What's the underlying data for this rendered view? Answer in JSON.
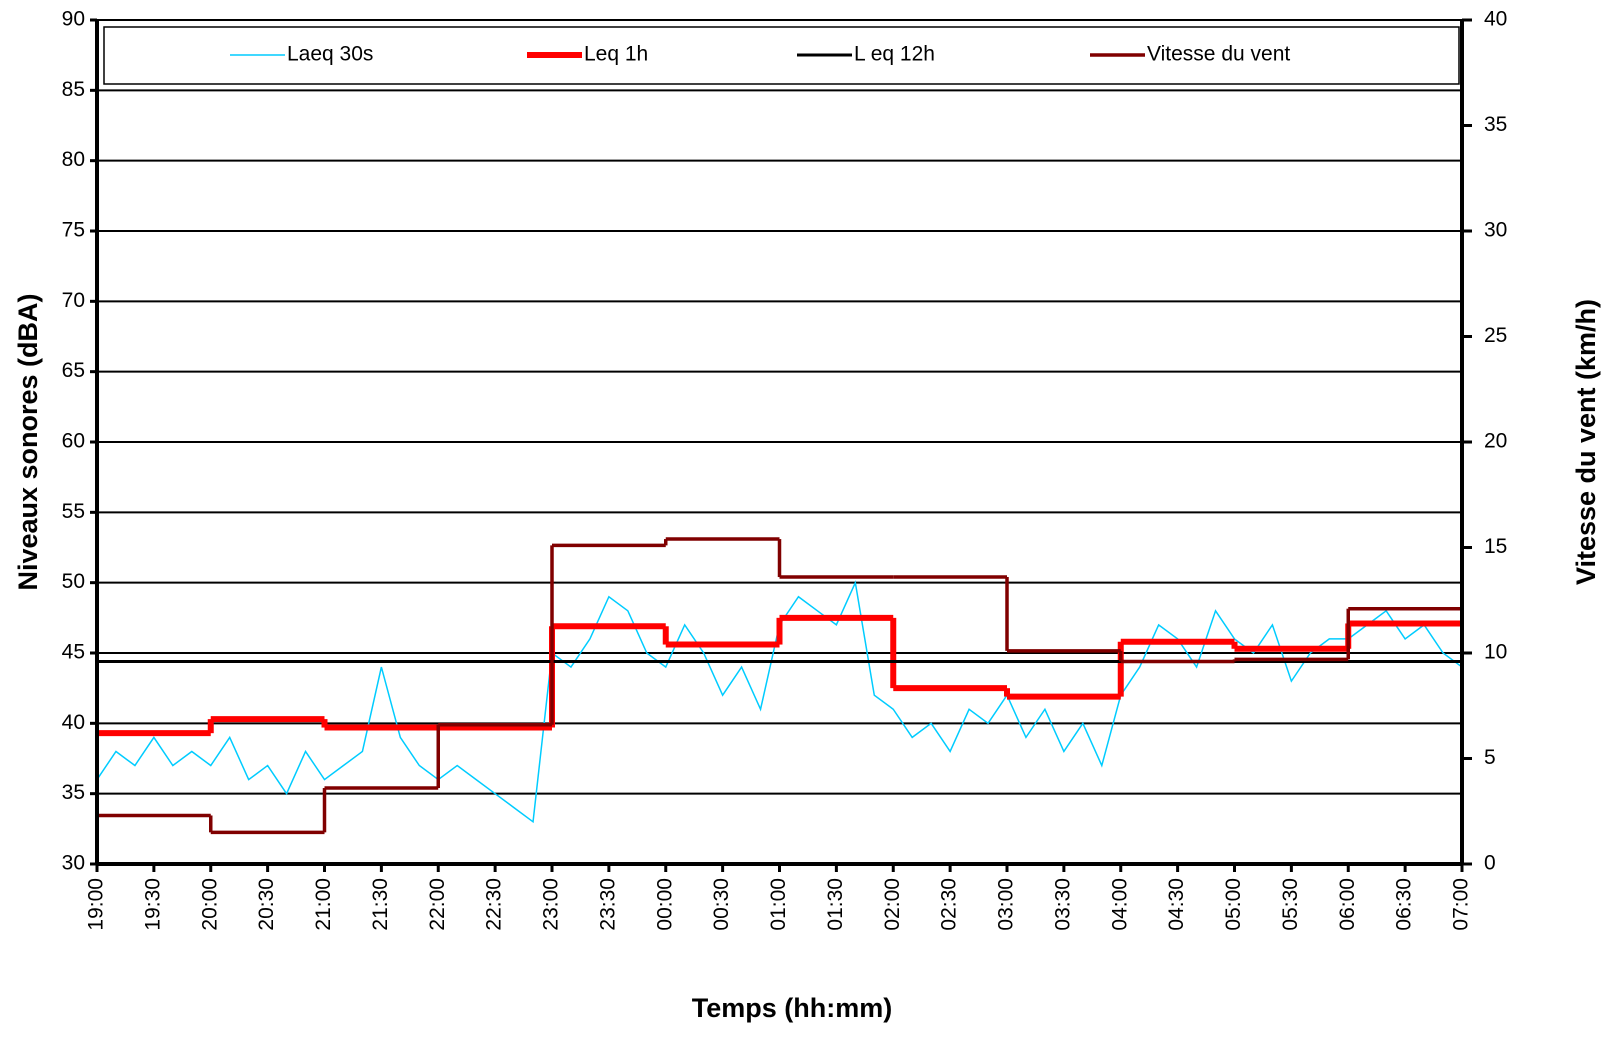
{
  "chart_data": {
    "type": "line",
    "x_label": "Temps (hh:mm)",
    "y_label": "Niveaux sonores (dBA)",
    "y2_label": "Vitesse du vent (km/h)",
    "xlim": [
      "19:00",
      "07:00"
    ],
    "xticks": [
      "19:00",
      "19:30",
      "20:00",
      "20:30",
      "21:00",
      "21:30",
      "22:00",
      "22:30",
      "23:00",
      "23:30",
      "00:00",
      "00:30",
      "01:00",
      "01:30",
      "02:00",
      "02:30",
      "03:00",
      "03:30",
      "04:00",
      "04:30",
      "05:00",
      "05:30",
      "06:00",
      "06:30",
      "07:00"
    ],
    "ylim": [
      30,
      90
    ],
    "yticks": [
      30,
      35,
      40,
      45,
      50,
      55,
      60,
      65,
      70,
      75,
      80,
      85,
      90
    ],
    "y2lim": [
      0,
      40
    ],
    "y2ticks": [
      0,
      5,
      10,
      15,
      20,
      25,
      30,
      35,
      40
    ],
    "grid": true,
    "legend": "top",
    "series": [
      {
        "name": "Laeq 30s",
        "color": "#00ccff",
        "line_width": 1.5,
        "x": [
          "19:00",
          "19:10",
          "19:20",
          "19:30",
          "19:40",
          "19:50",
          "20:00",
          "20:10",
          "20:20",
          "20:30",
          "20:40",
          "20:50",
          "21:00",
          "21:10",
          "21:20",
          "21:30",
          "21:40",
          "21:50",
          "22:00",
          "22:10",
          "22:20",
          "22:30",
          "22:40",
          "22:50",
          "23:00",
          "23:10",
          "23:20",
          "23:30",
          "23:40",
          "23:50",
          "00:00",
          "00:10",
          "00:20",
          "00:30",
          "00:40",
          "00:50",
          "01:00",
          "01:10",
          "01:20",
          "01:30",
          "01:40",
          "01:50",
          "02:00",
          "02:10",
          "02:20",
          "02:30",
          "02:40",
          "02:50",
          "03:00",
          "03:10",
          "03:20",
          "03:30",
          "03:40",
          "03:50",
          "04:00",
          "04:10",
          "04:20",
          "04:30",
          "04:40",
          "04:50",
          "05:00",
          "05:10",
          "05:20",
          "05:30",
          "05:40",
          "05:50",
          "06:00",
          "06:10",
          "06:20",
          "06:30",
          "06:40",
          "06:50",
          "07:00"
        ],
        "values": [
          36,
          38,
          37,
          39,
          37,
          38,
          37,
          39,
          36,
          37,
          35,
          38,
          36,
          37,
          38,
          44,
          39,
          37,
          36,
          37,
          36,
          35,
          34,
          33,
          45,
          44,
          46,
          49,
          48,
          45,
          44,
          47,
          45,
          42,
          44,
          41,
          47,
          49,
          48,
          47,
          50,
          42,
          41,
          39,
          40,
          38,
          41,
          40,
          42,
          39,
          41,
          38,
          40,
          37,
          42,
          44,
          47,
          46,
          44,
          48,
          46,
          45,
          47,
          43,
          45,
          46,
          46,
          47,
          48,
          46,
          47,
          45,
          44
        ]
      },
      {
        "name": "Leq 1h",
        "color": "#ff0000",
        "line_width": 6,
        "step": true,
        "x": [
          "19:00",
          "20:00",
          "21:00",
          "22:00",
          "23:00",
          "00:00",
          "01:00",
          "02:00",
          "03:00",
          "04:00",
          "05:00",
          "06:00"
        ],
        "values": [
          39.3,
          40.3,
          39.7,
          39.7,
          46.9,
          45.6,
          47.5,
          42.5,
          41.9,
          45.8,
          45.3,
          47.1
        ]
      },
      {
        "name": "L eq 12h",
        "color": "#000000",
        "line_width": 3,
        "x": [
          "19:00",
          "07:00"
        ],
        "values": [
          44.4,
          44.4
        ]
      },
      {
        "name": "Vitesse du vent",
        "color": "#800000",
        "line_width": 3.5,
        "step": true,
        "axis": "y2",
        "x": [
          "19:00",
          "20:00",
          "21:00",
          "22:00",
          "23:00",
          "00:00",
          "01:00",
          "02:00",
          "03:00",
          "04:00",
          "05:00",
          "06:00"
        ],
        "values": [
          2.3,
          1.5,
          3.6,
          6.6,
          15.1,
          15.4,
          13.6,
          13.6,
          10.1,
          9.6,
          9.7,
          12.1
        ]
      }
    ]
  }
}
